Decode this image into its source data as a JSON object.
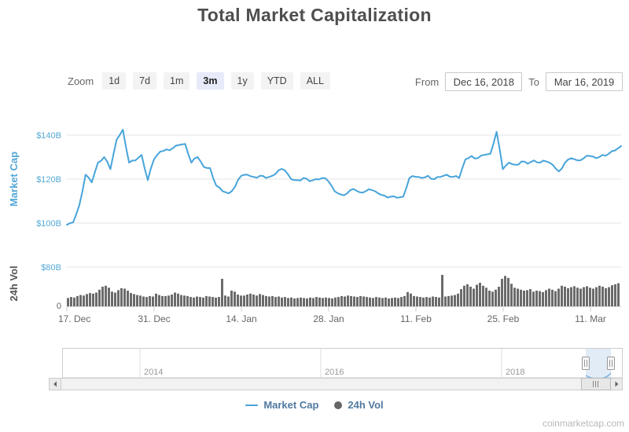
{
  "title": "Total Market Capitalization",
  "watermark": "coinmarketcap.com",
  "toolbar": {
    "zoom_label": "Zoom",
    "zoom_options": [
      "1d",
      "7d",
      "1m",
      "3m",
      "1y",
      "YTD",
      "ALL"
    ],
    "selected": "3m",
    "from_label": "From",
    "from_value": "Dec 16, 2018",
    "to_label": "To",
    "to_value": "Mar 16, 2019"
  },
  "legend": {
    "items": [
      {
        "label": "Market Cap",
        "marker": "line",
        "color": "#47A4DA"
      },
      {
        "label": "24h Vol",
        "marker": "circle",
        "color": "#666666"
      }
    ]
  },
  "colors": {
    "market_cap_line": "#47A4DA",
    "market_cap_axis_text": "#55A9D6",
    "volume_bars": "#6B6B6B",
    "axis_text_gray": "#666666",
    "grid_line": "#E6E6E6",
    "navigator_selection": "#BFD4EE",
    "selected_zoom_bg": "#E6EAF9"
  },
  "chart_data": [
    {
      "type": "line",
      "name": "Market Cap",
      "y_axis_title": "Market Cap",
      "unit": "USD billions",
      "y_ticks": [
        {
          "label": "$140B",
          "value": 140
        },
        {
          "label": "$120B",
          "value": 120
        },
        {
          "label": "$100B",
          "value": 100
        }
      ],
      "x_start_date": "2018-12-17",
      "x_step_days": 1,
      "x_tick_labels": [
        "17. Dec",
        "31. Dec",
        "14. Jan",
        "28. Jan",
        "11. Feb",
        "25. Feb",
        "11. Mar"
      ],
      "x_tick_day_index": [
        0,
        14,
        28,
        42,
        56,
        70,
        84
      ],
      "values": [
        99.2,
        100.3,
        108.0,
        122.0,
        118.5,
        127.5,
        130.0,
        124.5,
        138.0,
        142.5,
        127.5,
        128.5,
        131.0,
        119.5,
        129.0,
        132.5,
        133.5,
        134.0,
        135.5,
        136.0,
        127.5,
        130.0,
        125.5,
        125.0,
        117.0,
        114.5,
        113.5,
        116.5,
        121.5,
        122.0,
        121.0,
        121.5,
        120.5,
        121.5,
        124.0,
        124.0,
        120.0,
        119.5,
        120.5,
        119.0,
        120.0,
        120.5,
        119.0,
        114.5,
        113.0,
        113.5,
        115.5,
        114.0,
        114.5,
        115.0,
        113.5,
        112.5,
        112.0,
        111.5,
        112.0,
        120.5,
        121.0,
        120.5,
        121.5,
        120.0,
        121.0,
        122.0,
        121.0,
        120.5,
        129.0,
        130.5,
        129.5,
        131.0,
        131.5,
        141.5,
        124.5,
        127.5,
        126.5,
        128.0,
        127.0,
        128.5,
        127.5,
        128.0,
        126.5,
        123.5,
        127.5,
        129.5,
        128.5,
        129.5,
        130.5,
        129.5,
        131.0,
        131.5,
        133.0,
        135.0
      ]
    },
    {
      "type": "area",
      "name": "24h Vol",
      "y_axis_title": "24h Vol",
      "unit": "USD billions",
      "y_ticks": [
        {
          "label": "$80B",
          "value": 80
        },
        {
          "label": "0",
          "value": 0
        }
      ],
      "values": [
        17,
        19,
        18,
        21,
        23,
        22,
        25,
        27,
        26,
        28,
        34,
        40,
        42,
        38,
        30,
        28,
        33,
        37,
        36,
        32,
        27,
        25,
        23,
        22,
        20,
        19,
        21,
        20,
        26,
        23,
        21,
        21,
        22,
        24,
        28,
        26,
        23,
        22,
        21,
        19,
        18,
        20,
        19,
        18,
        21,
        20,
        19,
        18,
        19,
        56,
        22,
        20,
        32,
        30,
        24,
        22,
        22,
        24,
        26,
        24,
        22,
        25,
        23,
        21,
        20,
        21,
        19,
        20,
        18,
        19,
        17,
        18,
        16,
        17,
        18,
        17,
        16,
        18,
        17,
        19,
        18,
        17,
        18,
        17,
        16,
        18,
        19,
        21,
        20,
        22,
        21,
        20,
        19,
        21,
        20,
        19,
        18,
        17,
        19,
        18,
        17,
        18,
        16,
        17,
        18,
        17,
        19,
        21,
        29,
        26,
        21,
        20,
        19,
        18,
        19,
        18,
        20,
        19,
        18,
        64,
        20,
        21,
        22,
        23,
        26,
        35,
        42,
        45,
        40,
        36,
        44,
        48,
        42,
        38,
        32,
        30,
        34,
        40,
        56,
        62,
        58,
        46,
        38,
        36,
        34,
        32,
        33,
        35,
        30,
        32,
        31,
        29,
        33,
        36,
        34,
        31,
        36,
        42,
        40,
        37,
        39,
        41,
        38,
        36,
        39,
        41,
        38,
        36,
        39,
        42,
        40,
        37,
        39,
        43,
        45,
        47
      ]
    },
    {
      "type": "navigator",
      "year_labels": [
        "2014",
        "2016",
        "2018"
      ],
      "selected_range": {
        "from": "Dec 16, 2018",
        "to": "Mar 16, 2019"
      }
    }
  ]
}
